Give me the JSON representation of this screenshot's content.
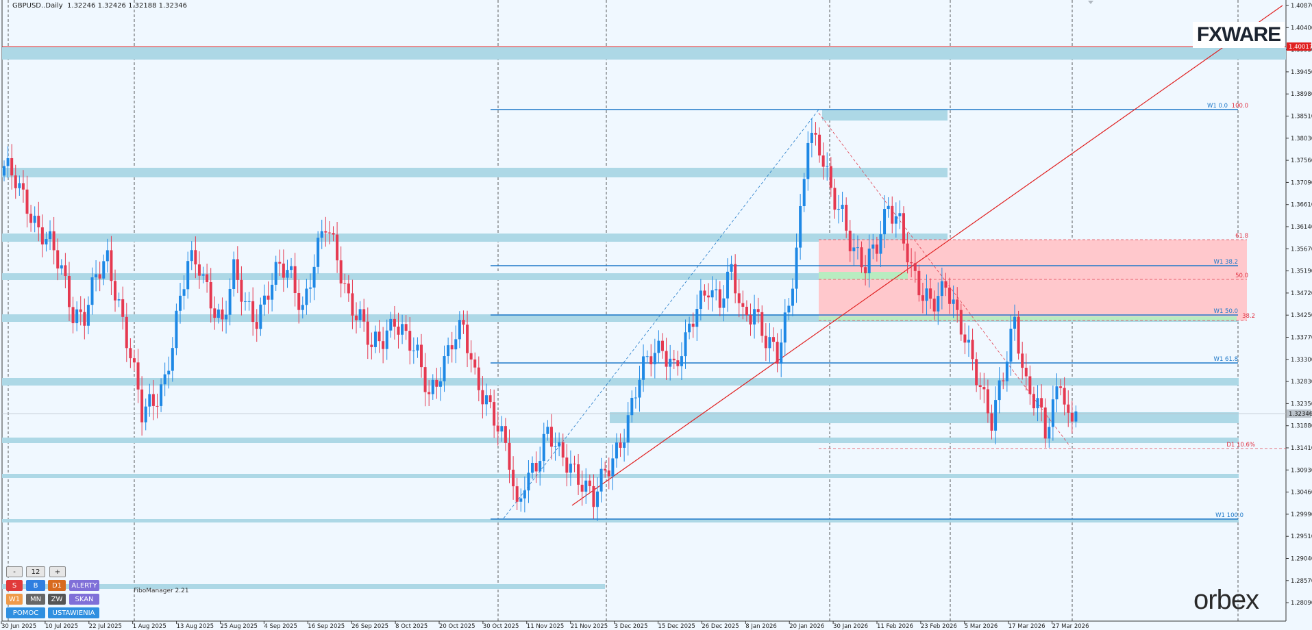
{
  "header": {
    "symbol": "GBPUSD..Daily",
    "ohlc": "1.32246 1.32426 1.32188 1.32346"
  },
  "logos": {
    "fxware": "FXWARE",
    "orbex": "orbex"
  },
  "indicator_label": "FiboManager 2.21",
  "price_axis": {
    "labels": [
      "1.40870",
      "1.40400",
      "1.39930",
      "1.39450",
      "1.38980",
      "1.38510",
      "1.38030",
      "1.37560",
      "1.37090",
      "1.36610",
      "1.36140",
      "1.35670",
      "1.35190",
      "1.34720",
      "1.34250",
      "1.33770",
      "1.33300",
      "1.32830",
      "1.32350",
      "1.31880",
      "1.31410",
      "1.30930",
      "1.30460",
      "1.29990",
      "1.29510",
      "1.29040",
      "1.28570",
      "1.28090"
    ],
    "current_price": "1.32346",
    "red_line_price": "1.40017",
    "min": 1.2792,
    "max": 1.4103
  },
  "time_axis": {
    "labels": [
      "30 Jun 2025",
      "10 Jul 2025",
      "22 Jul 2025",
      "1 Aug 2025",
      "13 Aug 2025",
      "25 Aug 2025",
      "4 Sep 2025",
      "16 Sep 2025",
      "26 Sep 2025",
      "8 Oct 2025",
      "20 Oct 2025",
      "30 Oct 2025",
      "11 Nov 2025",
      "21 Nov 2025",
      "3 Dec 2025",
      "15 Dec 2025",
      "26 Dec 2025",
      "8 Jan 2026",
      "20 Jan 2026",
      "30 Jan 2026",
      "11 Feb 2026",
      "23 Feb 2026",
      "5 Mar 2026",
      "17 Mar 2026",
      "27 Mar 2026"
    ]
  },
  "fib_labels": {
    "w1_00": "W1 0.0",
    "r100": "100.0",
    "r618": "61.8",
    "w1_382": "W1 38.2",
    "r500": "50.0",
    "w1_500": "W1 50.0",
    "r382": "38.2",
    "w1_618": "W1 61.8",
    "d1_106": "D1 10.6%",
    "w1_1000": "W1 100.0"
  },
  "toolbar": {
    "minus": "-",
    "value": "12",
    "plus": "+",
    "buttons": [
      {
        "label": "S",
        "color": "#e03a3a"
      },
      {
        "label": "B",
        "color": "#2f7fe0"
      },
      {
        "label": "D1",
        "color": "#d86a1e"
      },
      {
        "label": "ALERTY",
        "color": "#7f6fd8"
      },
      {
        "label": "W1",
        "color": "#ef9a4a"
      },
      {
        "label": "MN",
        "color": "#666666"
      },
      {
        "label": "ZW",
        "color": "#555555"
      },
      {
        "label": "SKAN",
        "color": "#7f6fd8"
      },
      {
        "label": "POMOC",
        "color": "#2f8fe0"
      },
      {
        "label": "USTAWIENIA",
        "color": "#2f8fe0"
      }
    ]
  },
  "colors": {
    "bull": "#1e88e5",
    "bear": "#e53950",
    "zone": "#add8e6",
    "fib_line": "#1e78c8",
    "red_line": "#e02020",
    "pink_zone": "#ffc8cc",
    "green_zone": "#b8ecc0"
  },
  "chart_data": {
    "type": "candlestick",
    "symbol": "GBPUSD..Daily",
    "timeframe": "Daily",
    "last": {
      "open": 1.32246,
      "high": 1.32426,
      "low": 1.32188,
      "close": 1.32346
    },
    "x_ticks": [
      "30 Jun 2025",
      "10 Jul 2025",
      "22 Jul 2025",
      "1 Aug 2025",
      "13 Aug 2025",
      "25 Aug 2025",
      "4 Sep 2025",
      "16 Sep 2025",
      "26 Sep 2025",
      "8 Oct 2025",
      "20 Oct 2025",
      "30 Oct 2025",
      "11 Nov 2025",
      "21 Nov 2025",
      "3 Dec 2025",
      "15 Dec 2025",
      "26 Dec 2025",
      "8 Jan 2026",
      "20 Jan 2026",
      "30 Jan 2026",
      "11 Feb 2026",
      "23 Feb 2026",
      "5 Mar 2026",
      "17 Mar 2026",
      "27 Mar 2026"
    ],
    "ylim": [
      1.2792,
      1.4103
    ],
    "close_path": [
      [
        0,
        1.374
      ],
      [
        3,
        1.372
      ],
      [
        6,
        1.368
      ],
      [
        9,
        1.362
      ],
      [
        12,
        1.358
      ],
      [
        15,
        1.353
      ],
      [
        18,
        1.345
      ],
      [
        21,
        1.344
      ],
      [
        24,
        1.351
      ],
      [
        27,
        1.355
      ],
      [
        30,
        1.347
      ],
      [
        33,
        1.336
      ],
      [
        36,
        1.322
      ],
      [
        39,
        1.325
      ],
      [
        42,
        1.331
      ],
      [
        45,
        1.343
      ],
      [
        48,
        1.354
      ],
      [
        51,
        1.354
      ],
      [
        54,
        1.348
      ],
      [
        57,
        1.342
      ],
      [
        60,
        1.352
      ],
      [
        63,
        1.346
      ],
      [
        66,
        1.344
      ],
      [
        69,
        1.349
      ],
      [
        72,
        1.353
      ],
      [
        75,
        1.352
      ],
      [
        78,
        1.346
      ],
      [
        81,
        1.355
      ],
      [
        84,
        1.362
      ],
      [
        87,
        1.356
      ],
      [
        90,
        1.348
      ],
      [
        93,
        1.343
      ],
      [
        96,
        1.336
      ],
      [
        99,
        1.339
      ],
      [
        102,
        1.344
      ],
      [
        105,
        1.339
      ],
      [
        108,
        1.334
      ],
      [
        111,
        1.327
      ],
      [
        114,
        1.333
      ],
      [
        117,
        1.338
      ],
      [
        120,
        1.34
      ],
      [
        123,
        1.331
      ],
      [
        126,
        1.327
      ],
      [
        129,
        1.32
      ],
      [
        132,
        1.312
      ],
      [
        134,
        1.302
      ],
      [
        136,
        1.31
      ],
      [
        139,
        1.313
      ],
      [
        142,
        1.318
      ],
      [
        145,
        1.314
      ],
      [
        148,
        1.313
      ],
      [
        151,
        1.309
      ],
      [
        154,
        1.304
      ],
      [
        157,
        1.31
      ],
      [
        160,
        1.316
      ],
      [
        163,
        1.322
      ],
      [
        166,
        1.33
      ],
      [
        169,
        1.335
      ],
      [
        172,
        1.338
      ],
      [
        175,
        1.333
      ],
      [
        178,
        1.337
      ],
      [
        181,
        1.345
      ],
      [
        184,
        1.351
      ],
      [
        187,
        1.347
      ],
      [
        190,
        1.352
      ],
      [
        193,
        1.343
      ],
      [
        196,
        1.346
      ],
      [
        199,
        1.339
      ],
      [
        202,
        1.334
      ],
      [
        205,
        1.345
      ],
      [
        208,
        1.366
      ],
      [
        210,
        1.383
      ],
      [
        213,
        1.378
      ],
      [
        216,
        1.369
      ],
      [
        219,
        1.366
      ],
      [
        222,
        1.358
      ],
      [
        225,
        1.353
      ],
      [
        228,
        1.358
      ],
      [
        231,
        1.368
      ],
      [
        234,
        1.364
      ],
      [
        237,
        1.352
      ],
      [
        240,
        1.347
      ],
      [
        243,
        1.348
      ],
      [
        246,
        1.351
      ],
      [
        249,
        1.342
      ],
      [
        252,
        1.336
      ],
      [
        255,
        1.33
      ],
      [
        258,
        1.322
      ],
      [
        261,
        1.33
      ],
      [
        264,
        1.342
      ],
      [
        267,
        1.33
      ],
      [
        270,
        1.326
      ],
      [
        272,
        1.318
      ],
      [
        274,
        1.323
      ],
      [
        276,
        1.33
      ],
      [
        278,
        1.322
      ],
      [
        280,
        1.323
      ]
    ]
  }
}
